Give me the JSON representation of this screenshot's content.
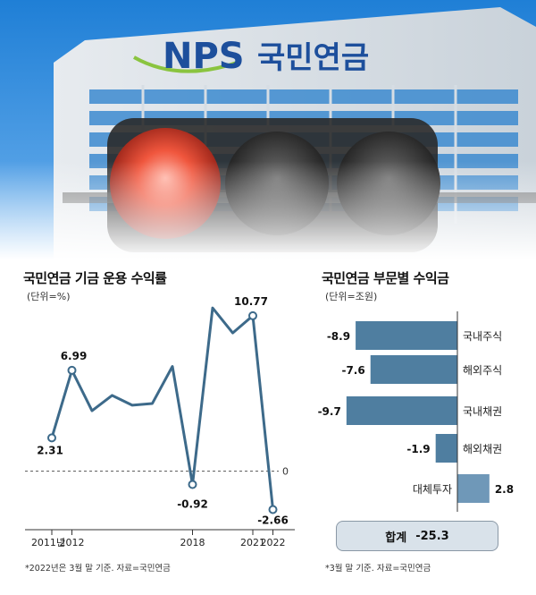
{
  "photo": {
    "sign_latin": "NPS",
    "sign_korean": "국민연금"
  },
  "left": {
    "title": "국민연금 기금 운용 수익률",
    "unit": "(단위=%)",
    "zero_label": "0",
    "source": "*2022년은 3월 말 기준. 자료=국민연금"
  },
  "right": {
    "title": "국민연금 부문별 수익금",
    "unit": "(단위=조원)",
    "total_label": "합계",
    "total_value": "-25.3",
    "source": "*3월 말 기준. 자료=국민연금"
  },
  "colors": {
    "line": "#3d6a8a",
    "bar": "#4f7ea0",
    "area": "#ffffff",
    "panel": "#e8eef4"
  },
  "chart_data": [
    {
      "type": "line",
      "title": "국민연금 기금 운용 수익률",
      "unit": "(단위=%)",
      "x": [
        "2011",
        "2012",
        "2013",
        "2014",
        "2015",
        "2016",
        "2017",
        "2018",
        "2019",
        "2020",
        "2021",
        "2022"
      ],
      "tick_labels": [
        "2011년",
        "2012",
        "2018",
        "2021",
        "2022"
      ],
      "y": [
        2.31,
        6.99,
        4.19,
        5.25,
        4.57,
        4.69,
        7.26,
        -0.92,
        11.31,
        9.58,
        10.77,
        -2.66
      ],
      "data_labels": {
        "2011": "2.31",
        "2012": "6.99",
        "2018": "-0.92",
        "2021": "10.77",
        "2022": "-2.66"
      },
      "ylim": [
        -3,
        12.5
      ],
      "grid": false
    },
    {
      "type": "bar",
      "orientation": "horizontal",
      "title": "국민연금 부문별 수익금",
      "unit": "(단위=조원)",
      "categories": [
        "국내주식",
        "해외주식",
        "국내채권",
        "해외채권",
        "대체투자"
      ],
      "values": [
        -8.9,
        -7.6,
        -9.7,
        -1.9,
        2.8
      ],
      "value_labels": [
        "-8.9",
        "-7.6",
        "-9.7",
        "-1.9",
        "2.8"
      ],
      "total": -25.3
    }
  ]
}
